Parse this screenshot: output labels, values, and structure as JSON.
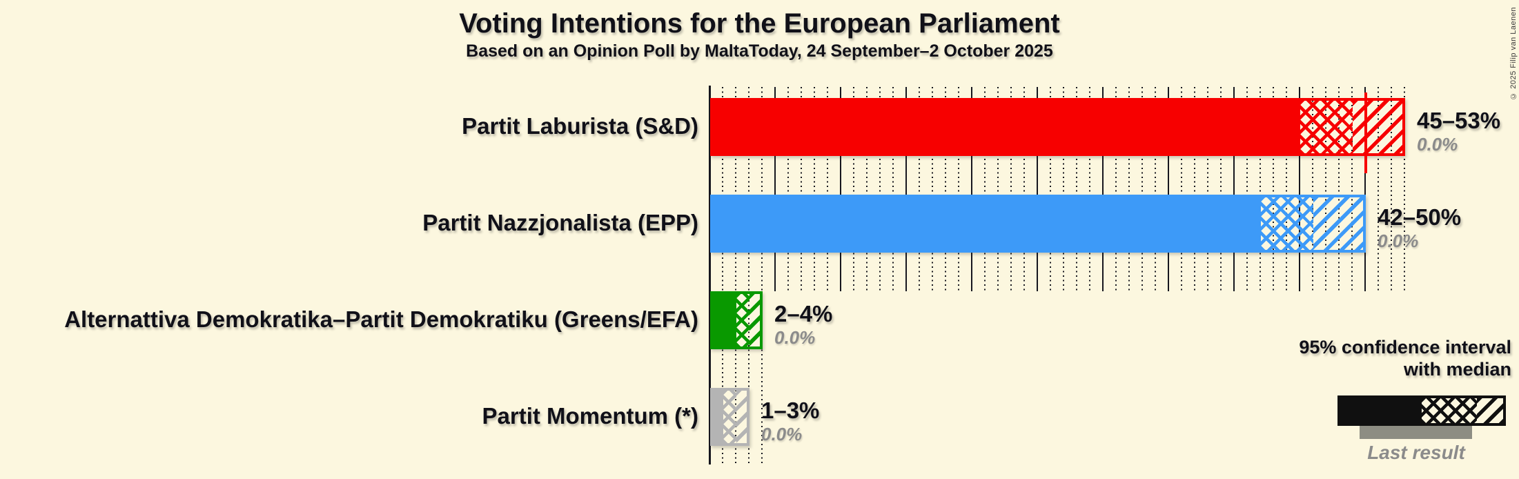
{
  "title": "Voting Intentions for the European Parliament",
  "subtitle": "Based on an Opinion Poll by MaltaToday, 24 September–2 October 2025",
  "copyright": "© 2025 Filip van Laenen",
  "legend": {
    "ci_label_line1": "95% confidence interval",
    "ci_label_line2": "with median",
    "last_result_label": "Last result"
  },
  "colors": {
    "background": "#FCF7DF",
    "text": "#101018",
    "muted_text": "#8B8B8B",
    "gridline": "#16161E",
    "legend_sample": "#101010",
    "last_result_bar": "#8D8D83"
  },
  "chart_data": {
    "type": "bar",
    "orientation": "horizontal",
    "unit": "%",
    "xlim": [
      0,
      53
    ],
    "gridline_minor_step": 1,
    "gridline_major_step": 5,
    "legend_position": "bottom-right",
    "majority_line": {
      "value": 50,
      "color": "#F70000"
    },
    "bars": [
      {
        "label": "Partit Laburista (S&D)",
        "ci_low": 45,
        "median": 49,
        "ci_high": 53,
        "range_label": "45–53%",
        "last_result_label": "0.0%",
        "last_result": 0.0,
        "color": "#F70000"
      },
      {
        "label": "Partit Nazzjonalista (EPP)",
        "ci_low": 42,
        "median": 46,
        "ci_high": 50,
        "range_label": "42–50%",
        "last_result_label": "0.0%",
        "last_result": 0.0,
        "color": "#3D9AF8"
      },
      {
        "label": "Alternattiva Demokratika–Partit Demokratiku (Greens/EFA)",
        "ci_low": 2,
        "median": 3,
        "ci_high": 4,
        "range_label": "2–4%",
        "last_result_label": "0.0%",
        "last_result": 0.0,
        "color": "#099900"
      },
      {
        "label": "Partit Momentum (*)",
        "ci_low": 1,
        "median": 2,
        "ci_high": 3,
        "range_label": "1–3%",
        "last_result_label": "0.0%",
        "last_result": 0.0,
        "color": "#B4B4B4"
      }
    ]
  }
}
